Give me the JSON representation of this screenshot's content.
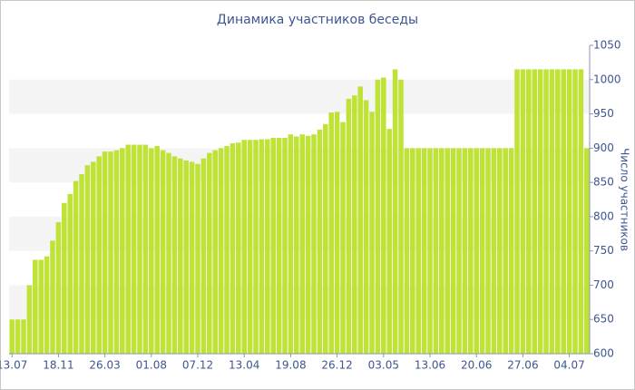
{
  "chart_data": {
    "type": "bar",
    "title": "Динамика участников беседы",
    "y_label": "Число участников",
    "categories": [
      "13.07",
      null,
      null,
      null,
      null,
      null,
      null,
      null,
      "18.11",
      null,
      null,
      null,
      null,
      null,
      null,
      null,
      "26.03",
      null,
      null,
      null,
      null,
      null,
      null,
      null,
      "01.08",
      null,
      null,
      null,
      null,
      null,
      null,
      null,
      "07.12",
      null,
      null,
      null,
      null,
      null,
      null,
      null,
      "13.04",
      null,
      null,
      null,
      null,
      null,
      null,
      null,
      "19.08",
      null,
      null,
      null,
      null,
      null,
      null,
      null,
      "26.12",
      null,
      null,
      null,
      null,
      null,
      null,
      null,
      "03.05",
      null,
      null,
      null,
      null,
      null,
      null,
      null,
      "13.06",
      null,
      null,
      null,
      null,
      null,
      null,
      null,
      "20.06",
      null,
      null,
      null,
      null,
      null,
      null,
      null,
      "27.06",
      null,
      null,
      null,
      null,
      null,
      null,
      null,
      "04.07",
      null,
      null,
      null
    ],
    "values": [
      650,
      650,
      650,
      700,
      737,
      737,
      742,
      765,
      792,
      820,
      833,
      852,
      862,
      875,
      880,
      888,
      895,
      895,
      897,
      900,
      905,
      905,
      905,
      905,
      900,
      903,
      897,
      893,
      888,
      885,
      882,
      880,
      877,
      885,
      893,
      897,
      900,
      903,
      907,
      908,
      912,
      912,
      912,
      913,
      913,
      915,
      915,
      915,
      920,
      917,
      920,
      918,
      920,
      927,
      935,
      952,
      953,
      938,
      972,
      977,
      990,
      970,
      953,
      1000,
      1003,
      928,
      1015,
      1000,
      900,
      900,
      900,
      900,
      900,
      900,
      900,
      900,
      900,
      900,
      900,
      900,
      900,
      900,
      900,
      900,
      900,
      900,
      900,
      1015,
      1015,
      1015,
      1015,
      1015,
      1015,
      1015,
      1015,
      1015,
      1015,
      1015,
      1015,
      900
    ],
    "color": "#bfe236",
    "ylim": [
      600,
      1050
    ],
    "yticks": [
      600,
      650,
      700,
      750,
      800,
      850,
      900,
      950,
      1000,
      1050
    ],
    "grid": true
  }
}
